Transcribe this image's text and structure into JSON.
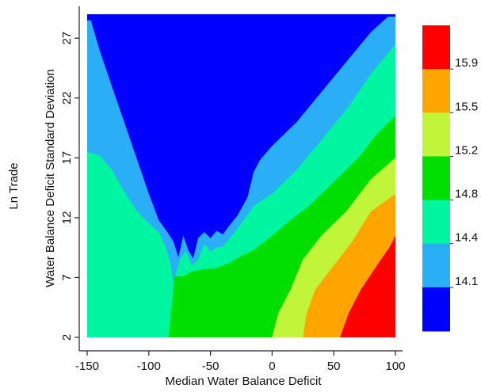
{
  "chart_data": {
    "type": "heatmap",
    "subtype": "filled-contour",
    "xlabel": "Median Water Balance Deficit",
    "ylabel": "Water Balance Deficit Standard Deviation",
    "zlabel": "Ln Trade",
    "xlim": [
      -150,
      100
    ],
    "ylim": [
      2,
      29
    ],
    "x_ticks": [
      -150,
      -100,
      -50,
      0,
      50,
      100
    ],
    "y_ticks": [
      2,
      7,
      12,
      17,
      22,
      27
    ],
    "x_tick_labels": [
      "-150",
      "-100",
      "-50",
      "0",
      "50",
      "100"
    ],
    "y_tick_labels": [
      "2",
      "7",
      "12",
      "17",
      "22",
      "27"
    ],
    "grid": false,
    "legend": {
      "placement": "right",
      "labels": [
        "15.9",
        "15.5",
        "15.2",
        "14.8",
        "14.4",
        "14.1"
      ],
      "levels_top_to_bottom": [
        {
          "color": "#ff0000"
        },
        {
          "color": "#ffa500"
        },
        {
          "color": "#c1f53a"
        },
        {
          "color": "#00df00"
        },
        {
          "color": "#00f5a0"
        },
        {
          "color": "#2aaef5"
        },
        {
          "color": "#0000ff"
        }
      ]
    },
    "colors": [
      "#0000ff",
      "#2aaef5",
      "#00f5a0",
      "#00df00",
      "#c1f53a",
      "#ffa500",
      "#ff0000"
    ],
    "boundaries": [
      {
        "name": "b1",
        "points": [
          [
            -147,
            28.5
          ],
          [
            -140,
            26
          ],
          [
            -130,
            23
          ],
          [
            -120,
            20
          ],
          [
            -110,
            17
          ],
          [
            -100,
            14
          ],
          [
            -92,
            11.8
          ],
          [
            -85,
            10.8
          ],
          [
            -80,
            10
          ],
          [
            -76,
            8.7
          ],
          [
            -72,
            10.5
          ],
          [
            -68,
            9.3
          ],
          [
            -64,
            8.6
          ],
          [
            -60,
            10.3
          ],
          [
            -55,
            10.8
          ],
          [
            -50,
            10.3
          ],
          [
            -45,
            10.9
          ],
          [
            -40,
            10.6
          ],
          [
            -35,
            11.3
          ],
          [
            -28,
            12.2
          ],
          [
            -20,
            13.7
          ],
          [
            -15,
            15.8
          ],
          [
            -10,
            16.8
          ],
          [
            0,
            18
          ],
          [
            20,
            20
          ],
          [
            40,
            22.5
          ],
          [
            60,
            25
          ],
          [
            80,
            27.5
          ],
          [
            94,
            28.8
          ]
        ]
      },
      {
        "name": "b2",
        "points": [
          [
            -150,
            17.5
          ],
          [
            -140,
            17.2
          ],
          [
            -130,
            16
          ],
          [
            -120,
            14.2
          ],
          [
            -110,
            12.6
          ],
          [
            -100,
            11.5
          ],
          [
            -92,
            10.8
          ],
          [
            -86,
            9.5
          ],
          [
            -82,
            8
          ],
          [
            -80,
            6.5
          ],
          [
            -75,
            8.5
          ],
          [
            -70,
            9.2
          ],
          [
            -65,
            8
          ],
          [
            -60,
            8.5
          ],
          [
            -55,
            9.8
          ],
          [
            -50,
            9.2
          ],
          [
            -45,
            9.5
          ],
          [
            -40,
            9.6
          ],
          [
            -35,
            10.2
          ],
          [
            -25,
            11.5
          ],
          [
            -15,
            13
          ],
          [
            0,
            14
          ],
          [
            20,
            16
          ],
          [
            40,
            18.5
          ],
          [
            60,
            21
          ],
          [
            80,
            24
          ],
          [
            100,
            26.5
          ]
        ]
      },
      {
        "name": "b3",
        "points": [
          [
            -84,
            2
          ],
          [
            -82,
            4
          ],
          [
            -79,
            7.1
          ],
          [
            -72,
            7.1
          ],
          [
            -65,
            7.5
          ],
          [
            -55,
            7.7
          ],
          [
            -45,
            7.8
          ],
          [
            -35,
            8.2
          ],
          [
            -25,
            8.8
          ],
          [
            -15,
            9.3
          ],
          [
            0,
            10.5
          ],
          [
            15,
            11.8
          ],
          [
            30,
            13
          ],
          [
            50,
            15
          ],
          [
            70,
            17
          ],
          [
            85,
            19
          ],
          [
            100,
            20.5
          ]
        ]
      },
      {
        "name": "b4",
        "points": [
          [
            0,
            2
          ],
          [
            5,
            4
          ],
          [
            15,
            6
          ],
          [
            25,
            8.5
          ],
          [
            40,
            10.5
          ],
          [
            60,
            12.5
          ],
          [
            80,
            15.2
          ],
          [
            100,
            17
          ]
        ]
      },
      {
        "name": "b5",
        "points": [
          [
            25,
            2
          ],
          [
            28,
            4
          ],
          [
            35,
            6
          ],
          [
            50,
            8
          ],
          [
            65,
            10
          ],
          [
            80,
            12.5
          ],
          [
            100,
            14
          ]
        ]
      },
      {
        "name": "b6",
        "points": [
          [
            55,
            2
          ],
          [
            62,
            4
          ],
          [
            72,
            6
          ],
          [
            85,
            8
          ],
          [
            95,
            9.5
          ],
          [
            100,
            10.5
          ]
        ]
      }
    ]
  }
}
